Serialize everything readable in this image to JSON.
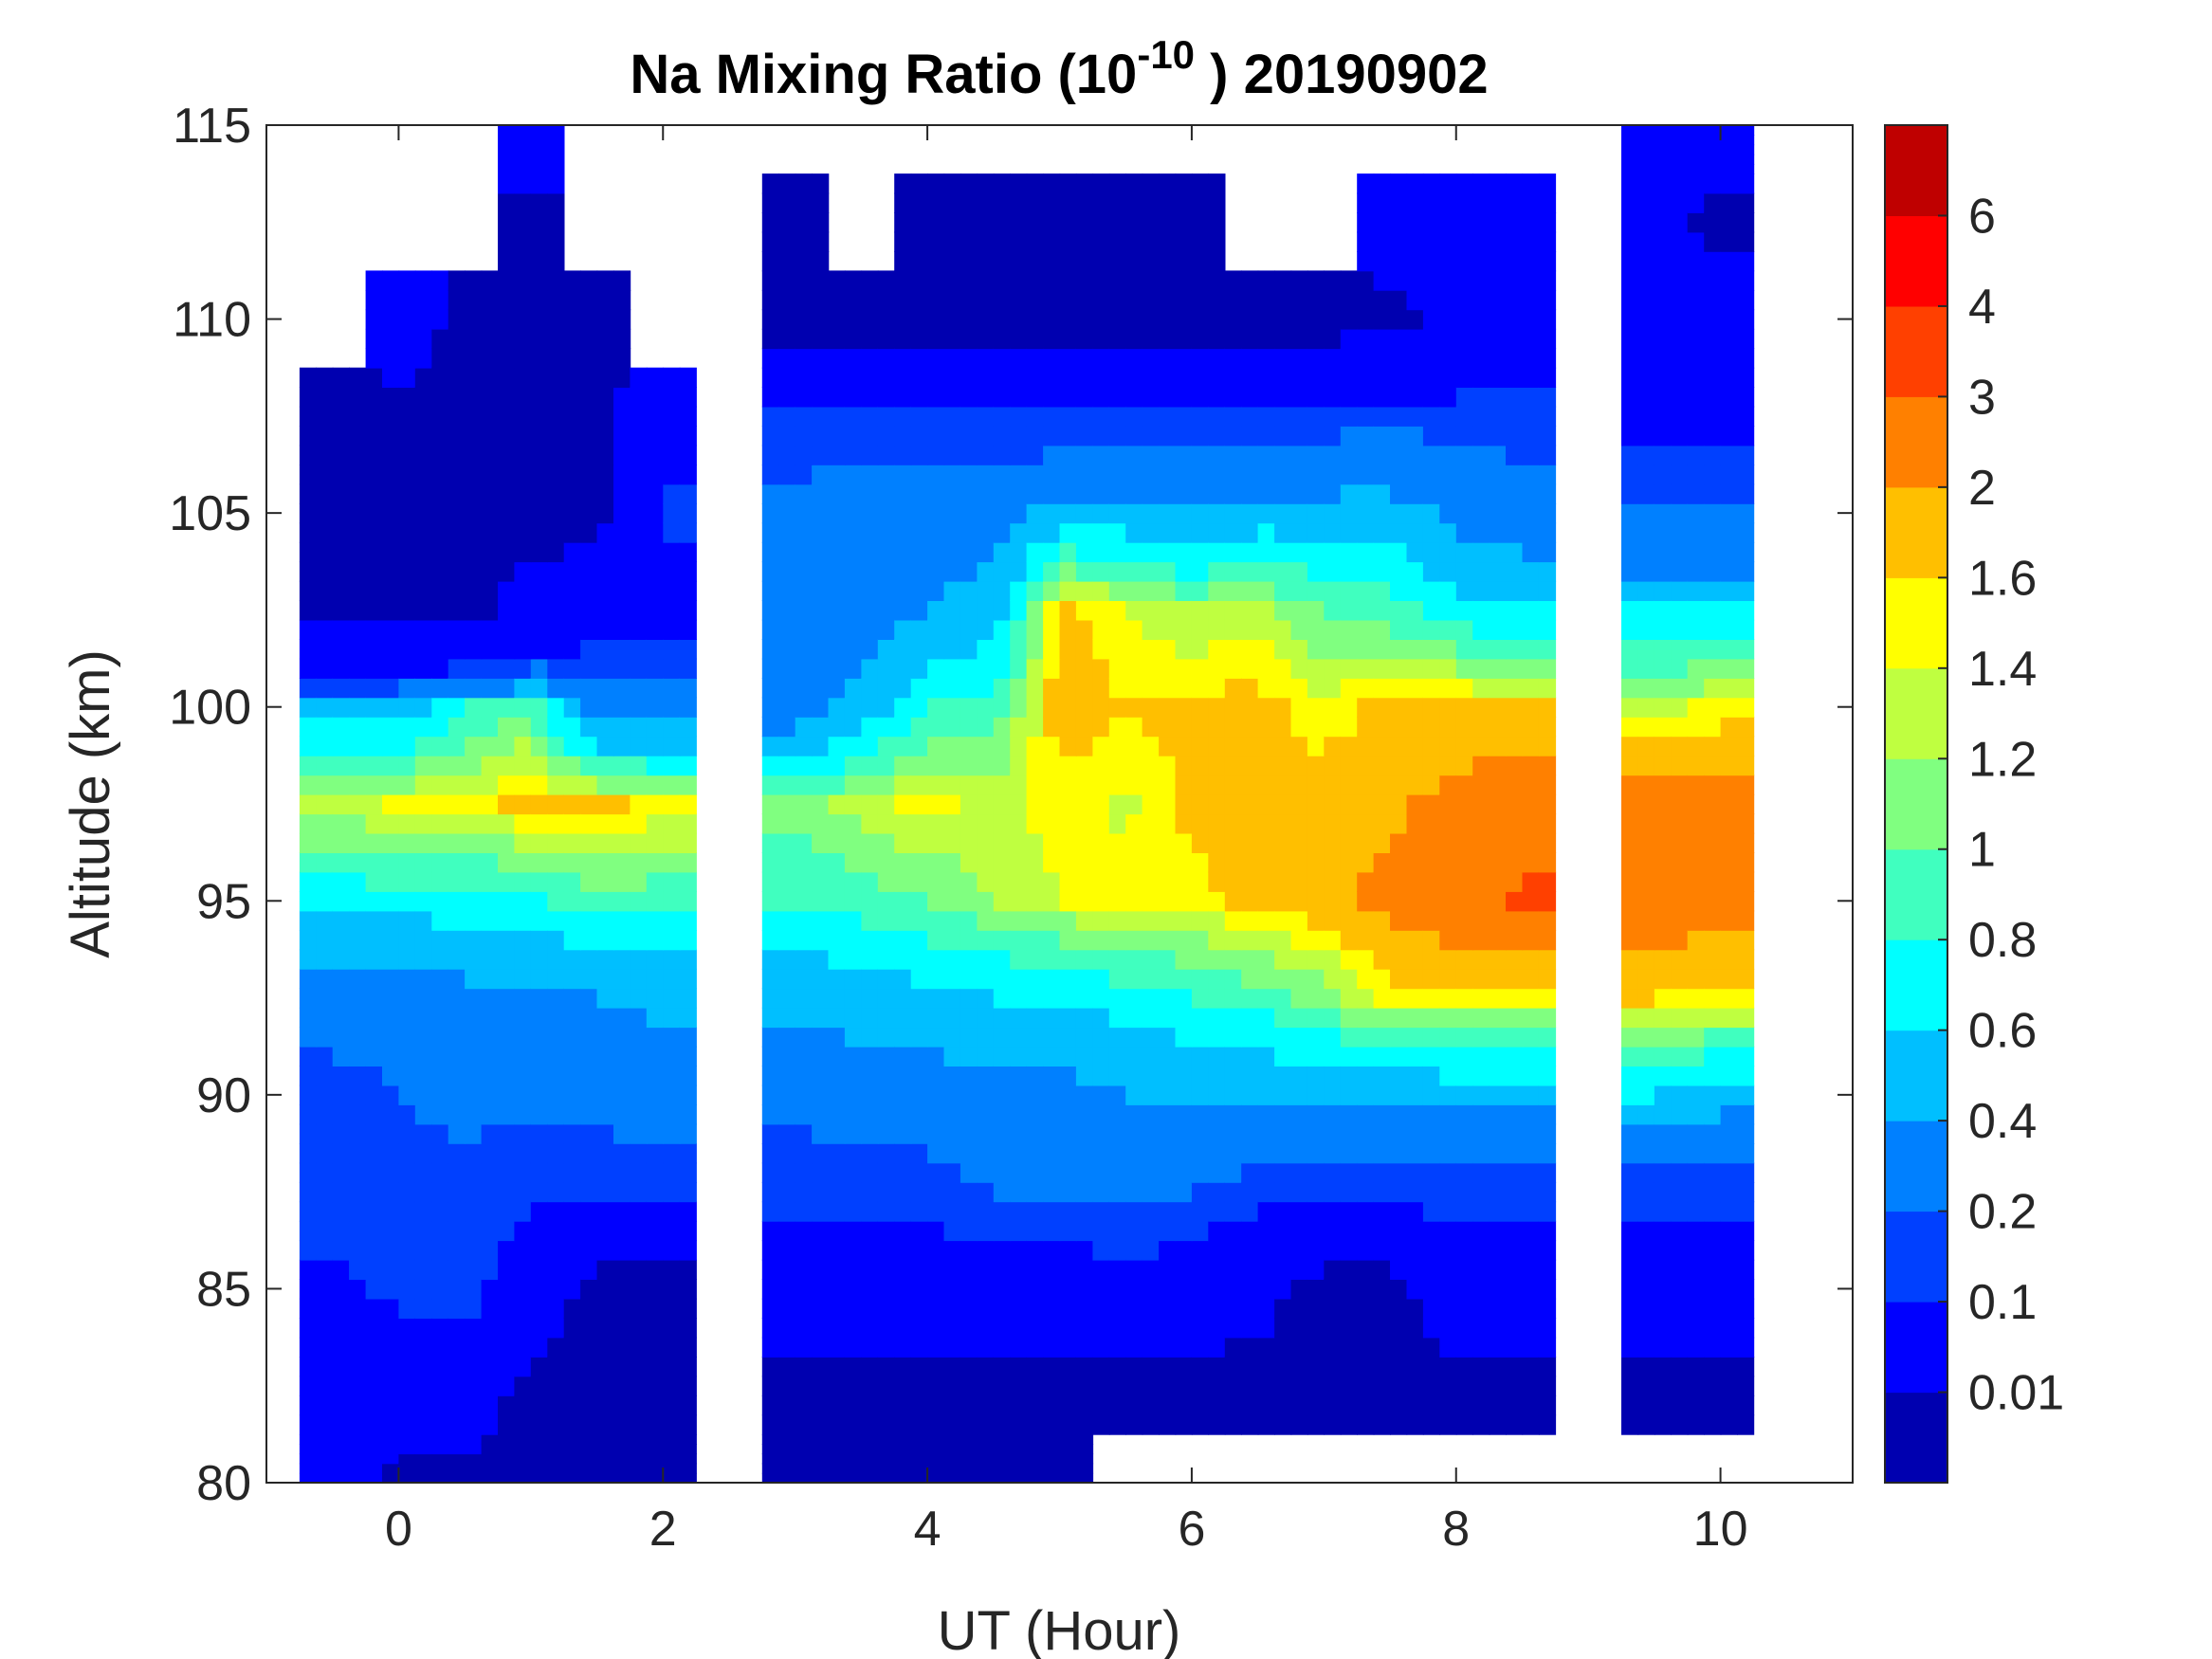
{
  "chart_data": {
    "type": "heatmap",
    "subtype": "filled-contour",
    "title": {
      "main": "Na Mixing Ratio (10",
      "superscript": "-10",
      "suffix": " ) 20190902"
    },
    "xlabel": "UT (Hour)",
    "ylabel": "Altitude (km)",
    "xlim": [
      -1,
      11
    ],
    "ylim": [
      80,
      115
    ],
    "xticks": [
      "0",
      "2",
      "4",
      "6",
      "8",
      "10"
    ],
    "xtick_values": [
      0,
      2,
      4,
      6,
      8,
      10
    ],
    "yticks": [
      "80",
      "85",
      "90",
      "95",
      "100",
      "105",
      "110",
      "115"
    ],
    "ytick_values": [
      80,
      85,
      90,
      95,
      100,
      105,
      110,
      115
    ],
    "grid": false,
    "colorbar": {
      "position": "right",
      "levels": [
        0.01,
        0.1,
        0.2,
        0.4,
        0.6,
        0.8,
        1,
        1.2,
        1.4,
        1.6,
        2,
        3,
        4,
        6
      ],
      "labels": [
        "0.01",
        "0.1",
        "0.2",
        "0.4",
        "0.6",
        "0.8",
        "1",
        "1.2",
        "1.4",
        "1.6",
        "2",
        "3",
        "4",
        "6"
      ],
      "colors": [
        "#0000B0",
        "#0000FF",
        "#0040FF",
        "#0080FF",
        "#00BFFF",
        "#00FFFF",
        "#40FFBF",
        "#80FF80",
        "#BFFF40",
        "#FFFF00",
        "#FFBF00",
        "#FF8000",
        "#FF4000",
        "#FF0000",
        "#BF0000"
      ]
    },
    "x": [
      -0.5,
      0,
      0.5,
      1,
      1.5,
      2,
      2.5,
      3,
      3.5,
      4,
      4.5,
      5,
      5.5,
      6,
      6.5,
      7,
      7.5,
      8,
      8.5,
      9,
      9.5,
      10
    ],
    "y": [
      80,
      82.5,
      85,
      87.5,
      90,
      92.5,
      95,
      97.5,
      100,
      102.5,
      105,
      107.5,
      110,
      112.5,
      115
    ],
    "z": [
      [
        0.05,
        0.05,
        0.08,
        0.15,
        0.15,
        0.3,
        0.7,
        1.3,
        0.5,
        0.005,
        0.005,
        0.005,
        null,
        null,
        null
      ],
      [
        0.005,
        0.05,
        0.12,
        0.15,
        0.2,
        0.3,
        0.7,
        1.45,
        0.5,
        0.005,
        0.005,
        0.005,
        0.05,
        null,
        null
      ],
      [
        0.005,
        0.05,
        0.15,
        0.15,
        0.25,
        0.35,
        0.7,
        1.5,
        0.8,
        0.005,
        0.005,
        0.005,
        0.005,
        null,
        null
      ],
      [
        0.005,
        0.005,
        0.05,
        0.12,
        0.25,
        0.35,
        0.75,
        1.7,
        1.0,
        0.02,
        0.005,
        0.005,
        0.005,
        0.005,
        0.05
      ],
      [
        0.005,
        0.005,
        0.005,
        0.12,
        0.25,
        0.4,
        0.9,
        1.7,
        0.3,
        0.05,
        0.005,
        0.005,
        0.005,
        null,
        null
      ],
      [
        0.005,
        0.005,
        0.005,
        0.15,
        0.3,
        0.45,
        0.9,
        1.5,
        0.3,
        0.05,
        0.15,
        0.05,
        null,
        null,
        null
      ],
      [
        null,
        null,
        null,
        null,
        null,
        null,
        null,
        null,
        null,
        null,
        null,
        null,
        null,
        null,
        null
      ],
      [
        0.005,
        0.005,
        0.05,
        0.12,
        0.25,
        0.45,
        0.8,
        1.1,
        0.3,
        0.2,
        0.3,
        0.1,
        0.005,
        0.005,
        null
      ],
      [
        0.005,
        0.005,
        0.05,
        0.15,
        0.3,
        0.5,
        0.9,
        1.3,
        0.5,
        0.3,
        0.3,
        0.15,
        0.005,
        null,
        null
      ],
      [
        0.005,
        0.005,
        0.05,
        0.15,
        0.3,
        0.55,
        1.0,
        1.5,
        0.8,
        0.4,
        0.3,
        0.15,
        0.005,
        0.005,
        null
      ],
      [
        0.005,
        0.005,
        0.05,
        0.2,
        0.35,
        0.6,
        1.2,
        1.3,
        0.9,
        0.5,
        0.3,
        0.12,
        0.005,
        0.005,
        null
      ],
      [
        0.005,
        0.005,
        0.05,
        0.2,
        0.35,
        0.6,
        1.4,
        1.5,
        1.8,
        1.7,
        0.5,
        0.12,
        0.005,
        0.005,
        null
      ],
      [
        null,
        0.005,
        0.08,
        0.2,
        0.4,
        0.7,
        1.5,
        1.35,
        1.6,
        1.4,
        0.5,
        0.15,
        0.005,
        0.005,
        null
      ],
      [
        null,
        0.005,
        0.05,
        0.2,
        0.4,
        0.8,
        1.5,
        1.7,
        1.7,
        1.2,
        0.4,
        0.15,
        0.005,
        0.005,
        null
      ],
      [
        null,
        0.005,
        0.02,
        0.15,
        0.45,
        0.9,
        1.7,
        1.8,
        1.7,
        1.3,
        0.5,
        0.15,
        0.005,
        null,
        null
      ],
      [
        null,
        0.005,
        0.005,
        0.12,
        0.45,
        1.1,
        1.8,
        1.8,
        1.45,
        1.0,
        0.5,
        0.15,
        0.005,
        null,
        null
      ],
      [
        null,
        0.005,
        0.005,
        0.15,
        0.4,
        1.5,
        2.2,
        1.9,
        1.7,
        0.9,
        0.5,
        0.2,
        0.005,
        0.05,
        null
      ],
      [
        null,
        0.005,
        0.05,
        0.15,
        0.5,
        1.5,
        2.5,
        2.2,
        1.7,
        0.7,
        0.35,
        0.15,
        0.02,
        0.05,
        null
      ],
      [
        null,
        0.005,
        0.05,
        0.15,
        0.5,
        1.4,
        3.2,
        2.5,
        1.6,
        0.6,
        0.3,
        0.15,
        0.05,
        0.08,
        null
      ],
      [
        null,
        null,
        null,
        null,
        null,
        null,
        null,
        null,
        null,
        null,
        null,
        null,
        null,
        null,
        null
      ],
      [
        null,
        0.005,
        0.05,
        0.15,
        0.6,
        1.6,
        2.5,
        2.3,
        1.3,
        0.6,
        0.2,
        0.08,
        0.05,
        0.02,
        0.05
      ],
      [
        null,
        0.005,
        0.05,
        0.15,
        0.5,
        1.5,
        2.3,
        2.2,
        1.5,
        0.6,
        0.2,
        0.08,
        0.05,
        0.005,
        0.05
      ]
    ]
  }
}
